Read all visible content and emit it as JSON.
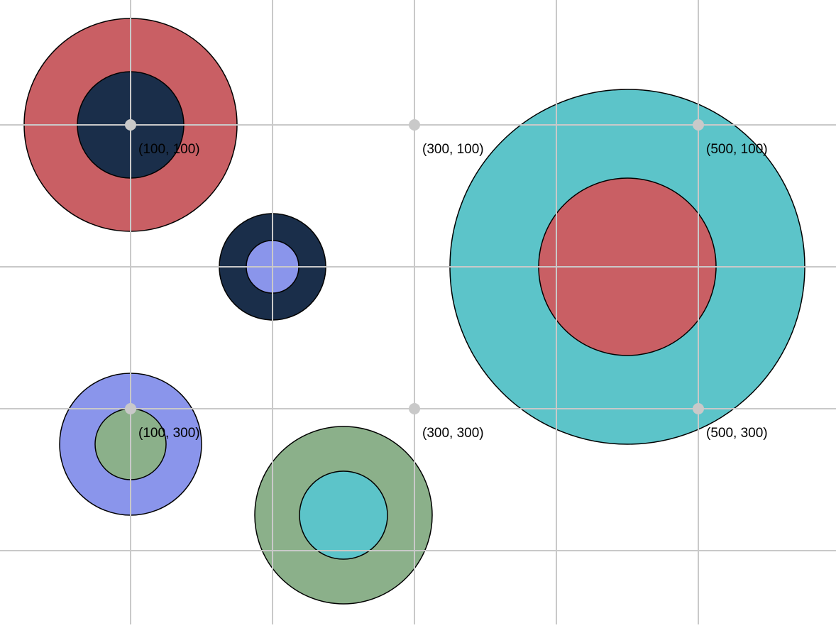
{
  "palette": {
    "red": "#c95f64",
    "navy": "#1a2e4a",
    "teal": "#5cc4c9",
    "periwinkle": "#8a95eb",
    "sage": "#8bb08a",
    "grid": "#c9c9c9"
  },
  "coordinate_markers": [
    {
      "label": "(100, 100)"
    },
    {
      "label": "(300, 100)"
    },
    {
      "label": "(500, 100)"
    },
    {
      "label": "(100, 300)"
    },
    {
      "label": "(300, 300)"
    },
    {
      "label": "(500, 300)"
    }
  ],
  "ring_pairs": [
    {
      "outer_color": "#c95f64",
      "inner_color": "#1a2e4a"
    },
    {
      "outer_color": "#1a2e4a",
      "inner_color": "#8a95eb"
    },
    {
      "outer_color": "#5cc4c9",
      "inner_color": "#c95f64"
    },
    {
      "outer_color": "#8a95eb",
      "inner_color": "#8bb08a"
    },
    {
      "outer_color": "#8bb08a",
      "inner_color": "#5cc4c9"
    }
  ]
}
